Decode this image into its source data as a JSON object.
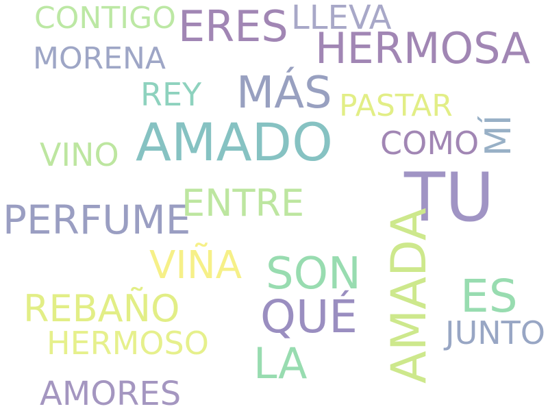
{
  "words": [
    {
      "text": "TU",
      "color": "#a094c4",
      "w": 10
    },
    {
      "text": "AMADO",
      "color": "#86c2c2",
      "w": 7
    },
    {
      "text": "HERMOSA",
      "color": "#a186b4",
      "w": 6
    },
    {
      "text": "AMADA",
      "color": "#cde88c",
      "w": 6
    },
    {
      "text": "ERES",
      "color": "#a186b4",
      "w": 6
    },
    {
      "text": "MÁS",
      "color": "#98a0c0",
      "w": 6
    },
    {
      "text": "SON",
      "color": "#98dcb0",
      "w": 6
    },
    {
      "text": "QUÉ",
      "color": "#9a8ec0",
      "w": 6
    },
    {
      "text": "ES",
      "color": "#98dcb0",
      "w": 6
    },
    {
      "text": "LA",
      "color": "#98dcb0",
      "w": 5
    },
    {
      "text": "PERFUME",
      "color": "#9a9ec2",
      "w": 5
    },
    {
      "text": "REBAÑO",
      "color": "#e2ee86",
      "w": 5
    },
    {
      "text": "VIÑA",
      "color": "#f6f088",
      "w": 5
    },
    {
      "text": "ENTRE",
      "color": "#bde6a0",
      "w": 5
    },
    {
      "text": "CONTIGO",
      "color": "#bce8a4",
      "w": 4
    },
    {
      "text": "LLEVA",
      "color": "#a8a8c8",
      "w": 4
    },
    {
      "text": "MORENA",
      "color": "#9ea6c6",
      "w": 4
    },
    {
      "text": "REY",
      "color": "#8ed2be",
      "w": 4
    },
    {
      "text": "PASTAR",
      "color": "#e2ee86",
      "w": 4
    },
    {
      "text": "MÍ",
      "color": "#98b0c6",
      "w": 4
    },
    {
      "text": "COMO",
      "color": "#a186b4",
      "w": 4
    },
    {
      "text": "VINO",
      "color": "#bde6a0",
      "w": 4
    },
    {
      "text": "HERMOSO",
      "color": "#e6f08c",
      "w": 4
    },
    {
      "text": "JUNTO",
      "color": "#98a6c4",
      "w": 4
    },
    {
      "text": "AMORES",
      "color": "#a496c0",
      "w": 4
    }
  ]
}
